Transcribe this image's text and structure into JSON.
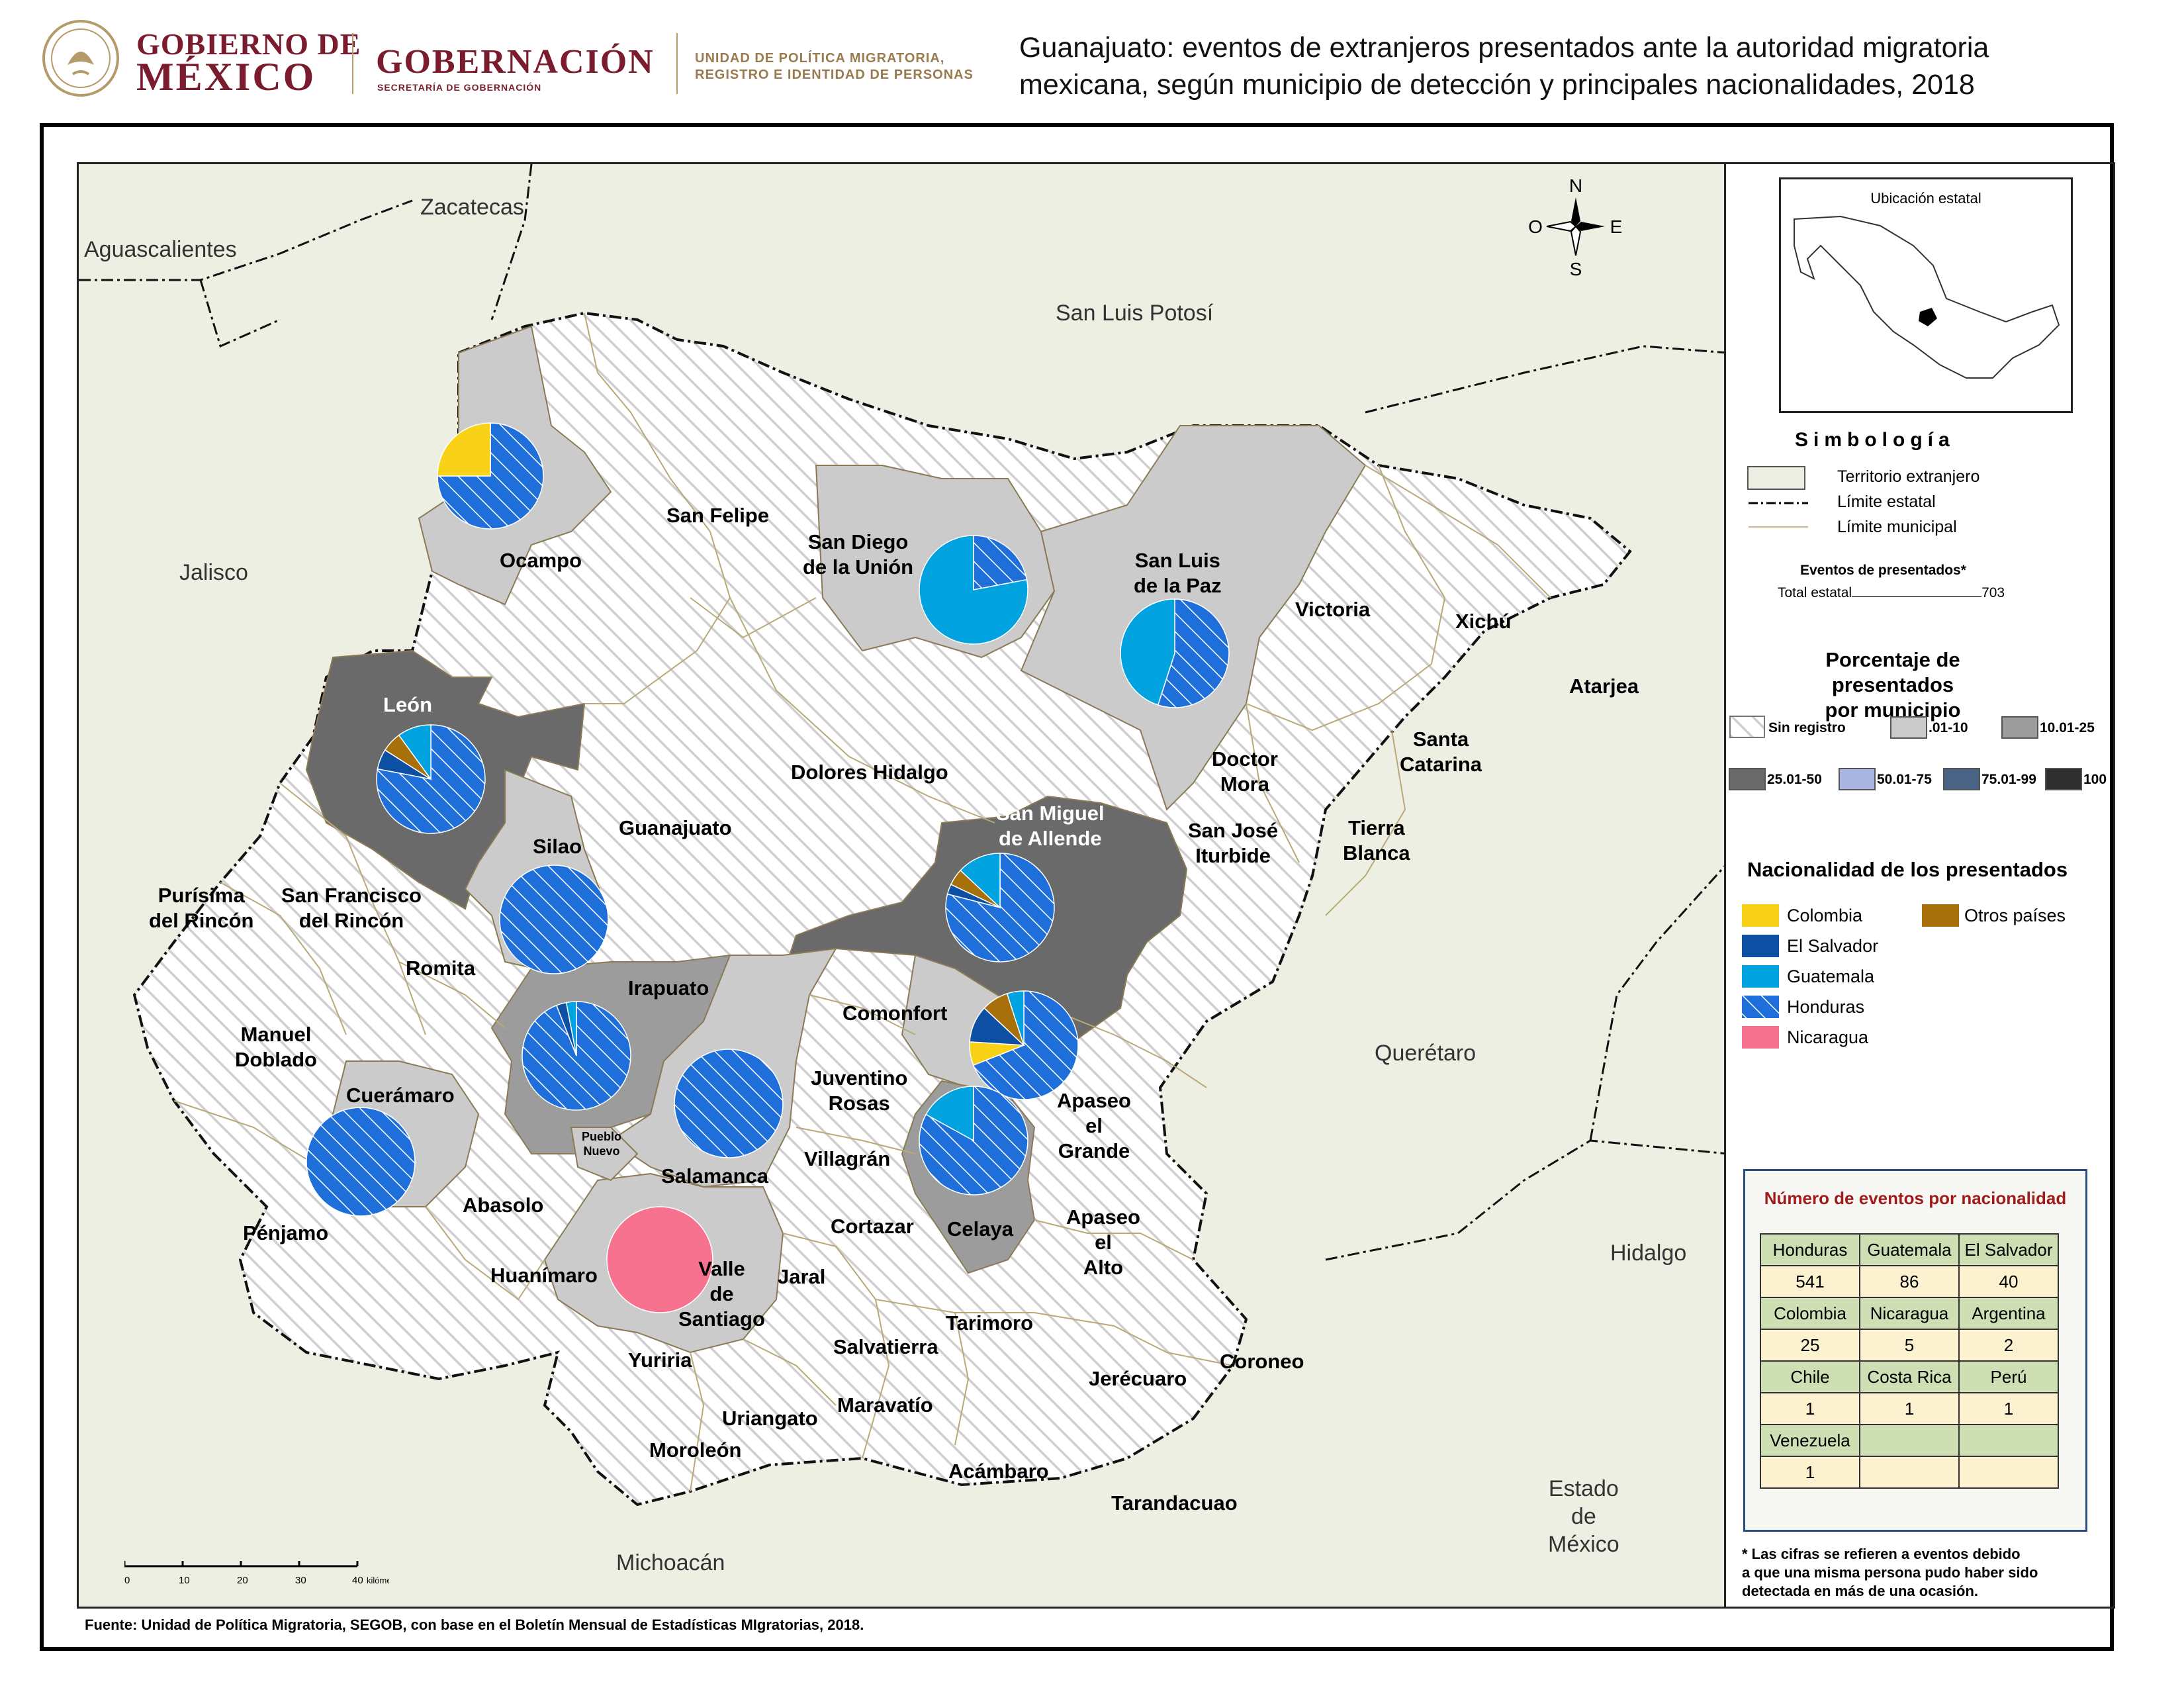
{
  "header": {
    "gob_line1": "GOBIERNO DE",
    "gob_line2": "MÉXICO",
    "gobernacion": "GOBERNACIÓN",
    "secretaria": "SECRETARÍA DE GOBERNACIÓN",
    "unidad_line1": "UNIDAD DE POLÍTICA MIGRATORIA,",
    "unidad_line2": "REGISTRO E IDENTIDAD DE PERSONAS",
    "title_line1": "Guanajuato: eventos de extranjeros presentados ante la autoridad migratoria",
    "title_line2": "mexicana, según municipio de detección y principales nacionalidades, 2018"
  },
  "colors": {
    "sin_registro": "#ececec",
    "pct_01_10": "#cbcbcb",
    "pct_10_25": "#9c9c9c",
    "pct_25_50": "#6a6a6a",
    "pct_50_75": "#a9b4e0",
    "pct_75_99": "#4a6486",
    "pct_100": "#2f2f2f",
    "colombia": "#f9d116",
    "el_salvador": "#0d4fa3",
    "guatemala": "#00a3e0",
    "honduras": "#1f6fdb",
    "nicaragua": "#f7728f",
    "otros": "#a8700a",
    "foreign": "#ecefe2"
  },
  "states": {
    "aguascalientes": "Aguascalientes",
    "zacatecas": "Zacatecas",
    "san_luis_potosi": "San Luis Potosí",
    "jalisco": "Jalisco",
    "queretaro": "Querétaro",
    "hidalgo": "Hidalgo",
    "michoacan": "Michoacán",
    "edomex_1": "Estado",
    "edomex_2": "de",
    "edomex_3": "México"
  },
  "municipios": {
    "ocampo": "Ocampo",
    "san_felipe": "San Felipe",
    "san_diego_1": "San Diego",
    "san_diego_2": "de la Unión",
    "slp_paz_1": "San Luis",
    "slp_paz_2": "de la Paz",
    "victoria": "Victoria",
    "xichu": "Xichú",
    "atarjea": "Atarjea",
    "leon": "León",
    "dolores": "Dolores Hidalgo",
    "doctor_mora_1": "Doctor",
    "doctor_mora_2": "Mora",
    "santa_catarina_1": "Santa",
    "santa_catarina_2": "Catarina",
    "silao": "Silao",
    "guanajuato": "Guanajuato",
    "sma_1": "San Miguel",
    "sma_2": "de Allende",
    "sji_1": "San José",
    "sji_2": "Iturbide",
    "tierra_blanca_1": "Tierra",
    "tierra_blanca_2": "Blanca",
    "purisima_1": "Purísima",
    "purisima_2": "del Rincón",
    "sfr_1": "San Francisco",
    "sfr_2": "del Rincón",
    "romita": "Romita",
    "irapuato": "Irapuato",
    "comonfort": "Comonfort",
    "manuel_doblado_1": "Manuel",
    "manuel_doblado_2": "Doblado",
    "cueramaro": "Cuerámaro",
    "juventino_1": "Juventino",
    "juventino_2": "Rosas",
    "apaseo_grande_1": "Apaseo",
    "apaseo_grande_2": "el",
    "apaseo_grande_3": "Grande",
    "pueblo_nuevo_1": "Pueblo",
    "pueblo_nuevo_2": "Nuevo",
    "villagran": "Villagrán",
    "salamanca": "Salamanca",
    "abasolo": "Abasolo",
    "penjamo": "Pénjamo",
    "cortazar": "Cortazar",
    "celaya": "Celaya",
    "apaseo_alto_1": "Apaseo",
    "apaseo_alto_2": "el",
    "apaseo_alto_3": "Alto",
    "huanimaro": "Huanímaro",
    "valle_1": "Valle",
    "valle_2": "de",
    "valle_3": "Santiago",
    "jaral": "Jaral",
    "tarimoro": "Tarimoro",
    "yuriria": "Yuriria",
    "salvatierra": "Salvatierra",
    "jerecuaro": "Jerécuaro",
    "coroneo": "Coroneo",
    "uriangato": "Uriangato",
    "maravatio": "Maravatío",
    "moroleon": "Moroleón",
    "acambaro": "Acámbaro",
    "tarandacuao": "Tarandacuao"
  },
  "compass": {
    "n": "N",
    "s": "S",
    "e": "E",
    "o": "O"
  },
  "scale": {
    "ticks": [
      "0",
      "10",
      "20",
      "30",
      "40"
    ],
    "unit": "kilómetros"
  },
  "source": "Fuente: Unidad de Política Migratoria, SEGOB, con base en el Boletín Mensual de Estadísticas MIgratorias, 2018.",
  "legend": {
    "inset_title": "Ubicación estatal",
    "simbologia": "Simbología",
    "territorio": "Territorio extranjero",
    "limite_estatal": "Límite estatal",
    "limite_municipal": "Límite municipal",
    "eventos_title": "Eventos de presentados*",
    "total_label": "Total estatal",
    "total_value": "703",
    "porc_title_1": "Porcentaje de presentados",
    "porc_title_2": "por municipio",
    "sin_registro": "Sin registro",
    "r1": ".01-10",
    "r2": "10.01-25",
    "r3": "25.01-50",
    "r4": "50.01-75",
    "r5": "75.01-99",
    "r6": "100",
    "nac_title": "Nacionalidad de los presentados",
    "colombia": "Colombia",
    "otros": "Otros países",
    "el_salvador": "El Salvador",
    "guatemala": "Guatemala",
    "honduras": "Honduras",
    "nicaragua": "Nicaragua"
  },
  "table": {
    "title": "Número de eventos por nacionalidad",
    "rows": [
      [
        "Honduras",
        "Guatemala",
        "El Salvador"
      ],
      [
        "541",
        "86",
        "40"
      ],
      [
        "Colombia",
        "Nicaragua",
        "Argentina"
      ],
      [
        "25",
        "5",
        "2"
      ],
      [
        "Chile",
        "Costa Rica",
        "Perú"
      ],
      [
        "1",
        "1",
        "1"
      ],
      [
        "Venezuela",
        "",
        ""
      ],
      [
        "1",
        "",
        ""
      ]
    ]
  },
  "note": {
    "line1": "* Las cifras se refieren a eventos debido",
    "line2": "a que una misma persona pudo haber sido",
    "line3": "detectada en más de una ocasión."
  },
  "pies": [
    {
      "municipio": "Ocampo",
      "shares": {
        "honduras": 0.75,
        "colombia": 0.25
      }
    },
    {
      "municipio": "San Diego de la Unión",
      "shares": {
        "honduras": 0.22,
        "guatemala": 0.78
      }
    },
    {
      "municipio": "San Luis de la Paz",
      "shares": {
        "honduras": 0.55,
        "guatemala": 0.45
      }
    },
    {
      "municipio": "León",
      "shares": {
        "honduras": 0.78,
        "guatemala": 0.1,
        "el_salvador": 0.06,
        "otros": 0.06
      }
    },
    {
      "municipio": "Silao",
      "shares": {
        "honduras": 1
      }
    },
    {
      "municipio": "San Miguel de Allende",
      "shares": {
        "honduras": 0.79,
        "guatemala": 0.13,
        "el_salvador": 0.03,
        "otros": 0.05
      }
    },
    {
      "municipio": "Comonfort",
      "shares": {
        "honduras": 0.69,
        "colombia": 0.07,
        "el_salvador": 0.11,
        "otros": 0.08,
        "guatemala": 0.05
      }
    },
    {
      "municipio": "Irapuato",
      "shares": {
        "honduras": 0.94,
        "el_salvador": 0.03,
        "guatemala": 0.03
      }
    },
    {
      "municipio": "Salamanca",
      "shares": {
        "honduras": 1
      }
    },
    {
      "municipio": "Celaya",
      "shares": {
        "honduras": 0.83,
        "guatemala": 0.17
      }
    },
    {
      "municipio": "Cuerámaro",
      "shares": {
        "honduras": 1
      }
    },
    {
      "municipio": "Valle de Santiago",
      "shares": {
        "nicaragua": 1
      }
    }
  ]
}
